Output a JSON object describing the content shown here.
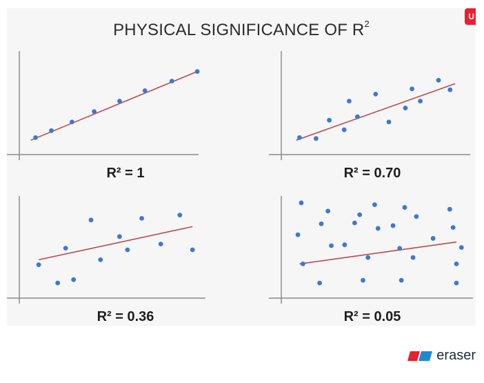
{
  "title": "PHYSICAL SIGNIFICANCE OF R",
  "title_sup": "2",
  "badge": "U",
  "brand": "eraser",
  "colors": {
    "point": "#3b78d8",
    "line": "#c0454a",
    "axis": "#8a8a8a",
    "brand_red": "#e8202f",
    "brand_blue": "#1e8ad6"
  },
  "chart_data": [
    {
      "type": "scatter",
      "label": "R² = 1",
      "points": [
        [
          0.05,
          0.1
        ],
        [
          0.15,
          0.18
        ],
        [
          0.28,
          0.28
        ],
        [
          0.42,
          0.4
        ],
        [
          0.58,
          0.52
        ],
        [
          0.74,
          0.64
        ],
        [
          0.91,
          0.75
        ],
        [
          1.07,
          0.86
        ]
      ],
      "fit": [
        [
          0.02,
          0.07
        ],
        [
          1.07,
          0.86
        ]
      ]
    },
    {
      "type": "scatter",
      "label": "R² = 0.70",
      "points": [
        [
          0.06,
          0.1
        ],
        [
          0.16,
          0.09
        ],
        [
          0.24,
          0.3
        ],
        [
          0.33,
          0.19
        ],
        [
          0.36,
          0.52
        ],
        [
          0.41,
          0.34
        ],
        [
          0.52,
          0.6
        ],
        [
          0.6,
          0.28
        ],
        [
          0.7,
          0.44
        ],
        [
          0.74,
          0.66
        ],
        [
          0.79,
          0.52
        ],
        [
          0.9,
          0.76
        ],
        [
          0.97,
          0.65
        ]
      ],
      "fit": [
        [
          0.04,
          0.07
        ],
        [
          1.0,
          0.72
        ]
      ]
    },
    {
      "type": "scatter",
      "label": "R² = 0.36",
      "points": [
        [
          0.07,
          0.32
        ],
        [
          0.19,
          0.1
        ],
        [
          0.24,
          0.52
        ],
        [
          0.29,
          0.14
        ],
        [
          0.4,
          0.86
        ],
        [
          0.46,
          0.38
        ],
        [
          0.58,
          0.66
        ],
        [
          0.63,
          0.5
        ],
        [
          0.72,
          0.88
        ],
        [
          0.84,
          0.57
        ],
        [
          0.96,
          0.92
        ],
        [
          1.04,
          0.5
        ]
      ],
      "fit": [
        [
          0.07,
          0.38
        ],
        [
          1.04,
          0.78
        ]
      ]
    },
    {
      "type": "scatter",
      "label": "R² = 0.05",
      "points": [
        [
          0.05,
          0.62
        ],
        [
          0.07,
          0.97
        ],
        [
          0.08,
          0.3
        ],
        [
          0.18,
          0.09
        ],
        [
          0.19,
          0.74
        ],
        [
          0.23,
          0.88
        ],
        [
          0.25,
          0.5
        ],
        [
          0.33,
          0.51
        ],
        [
          0.39,
          0.75
        ],
        [
          0.42,
          0.84
        ],
        [
          0.44,
          0.12
        ],
        [
          0.47,
          0.37
        ],
        [
          0.51,
          0.95
        ],
        [
          0.53,
          0.69
        ],
        [
          0.62,
          0.72
        ],
        [
          0.66,
          0.47
        ],
        [
          0.67,
          0.12
        ],
        [
          0.69,
          0.92
        ],
        [
          0.74,
          0.37
        ],
        [
          0.76,
          0.82
        ],
        [
          0.86,
          0.58
        ],
        [
          0.96,
          0.9
        ],
        [
          0.98,
          0.7
        ],
        [
          1.0,
          0.09
        ],
        [
          1.0,
          0.3
        ],
        [
          1.03,
          0.48
        ]
      ],
      "fit": [
        [
          0.06,
          0.3
        ],
        [
          1.0,
          0.54
        ]
      ]
    }
  ]
}
